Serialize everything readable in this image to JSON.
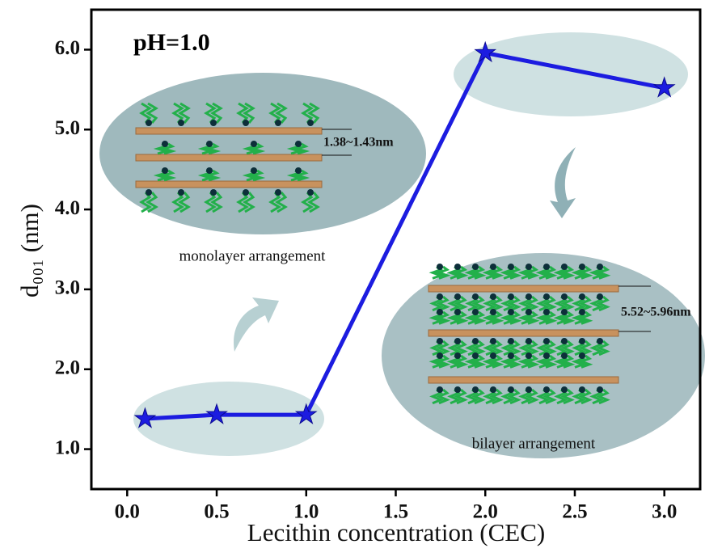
{
  "chart_data": {
    "type": "line",
    "x_label": "Lecithin concentration (CEC)",
    "y_label": "d₀₀₁ (nm)",
    "annotations": [
      "pH=1.0",
      "monolayer arrangement",
      "bilayer arrangement",
      "1.38~1.43nm",
      "5.52~5.96nm"
    ],
    "x": [
      0.1,
      0.5,
      1.0,
      2.0,
      3.0
    ],
    "values": [
      1.38,
      1.43,
      1.43,
      5.96,
      5.52
    ],
    "color": "#1c1ce0",
    "xlim": [
      -0.2,
      3.2
    ],
    "ylim": [
      0.5,
      6.5
    ],
    "xticks": [
      {
        "value": 0,
        "label": "0.0"
      },
      0.5,
      {
        "value": 1,
        "label": "1.0"
      },
      1.5,
      {
        "value": 2,
        "label": "2.0"
      },
      2.5,
      {
        "value": 3,
        "label": "3.0"
      }
    ],
    "yticks": [
      {
        "value": 1,
        "label": "1.0"
      },
      {
        "value": 2,
        "label": "2.0"
      },
      {
        "value": 3,
        "label": "3.0"
      },
      {
        "value": 4,
        "label": "4.0"
      },
      {
        "value": 5,
        "label": "5.0"
      },
      {
        "value": 6,
        "label": "6.0"
      }
    ]
  }
}
